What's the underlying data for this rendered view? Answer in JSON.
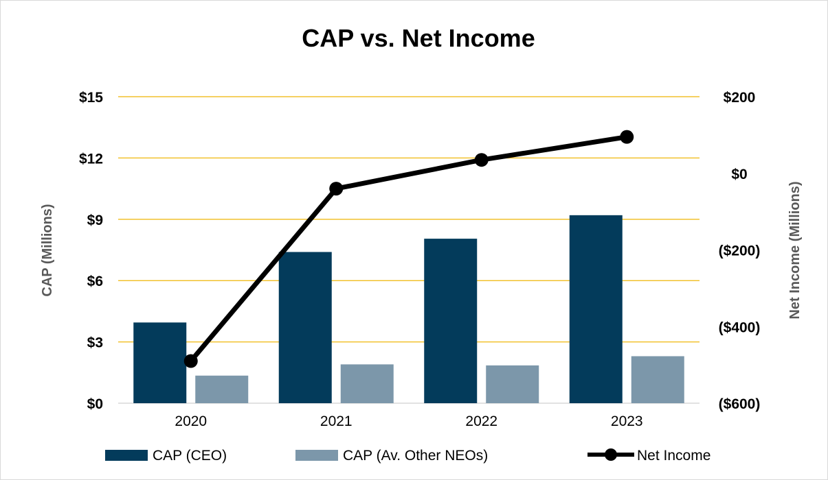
{
  "chart_data": {
    "type": "bar",
    "title": "CAP vs. Net Income",
    "categories": [
      "2020",
      "2021",
      "2022",
      "2023"
    ],
    "ylabel_left": "CAP (Millions)",
    "ylabel_right": "Net Income (Millions)",
    "ylim_left": [
      0,
      15
    ],
    "ylim_right": [
      -600,
      200
    ],
    "yticks_left": [
      0,
      3,
      6,
      9,
      12,
      15
    ],
    "yticks_left_labels": [
      "$0",
      "$3",
      "$6",
      "$9",
      "$12",
      "$15"
    ],
    "yticks_right": [
      -600,
      -400,
      -200,
      0,
      200
    ],
    "yticks_right_labels": [
      "($600)",
      "($400)",
      "($200)",
      "$0",
      "$200"
    ],
    "grid": true,
    "legend_position": "bottom",
    "series": [
      {
        "name": "CAP (CEO)",
        "type": "bar",
        "axis": "left",
        "color": "#033b5b",
        "values": [
          3.95,
          7.4,
          8.05,
          9.2
        ]
      },
      {
        "name": "CAP (Av. Other NEOs)",
        "type": "bar",
        "axis": "left",
        "color": "#7c97aa",
        "values": [
          1.35,
          1.9,
          1.85,
          2.3
        ]
      },
      {
        "name": "Net Income",
        "type": "line",
        "axis": "right",
        "color": "#000000",
        "values": [
          -490,
          -40,
          35,
          95
        ]
      }
    ],
    "colors": {
      "grid": "#f2c12e",
      "axis_label": "#595959"
    }
  }
}
